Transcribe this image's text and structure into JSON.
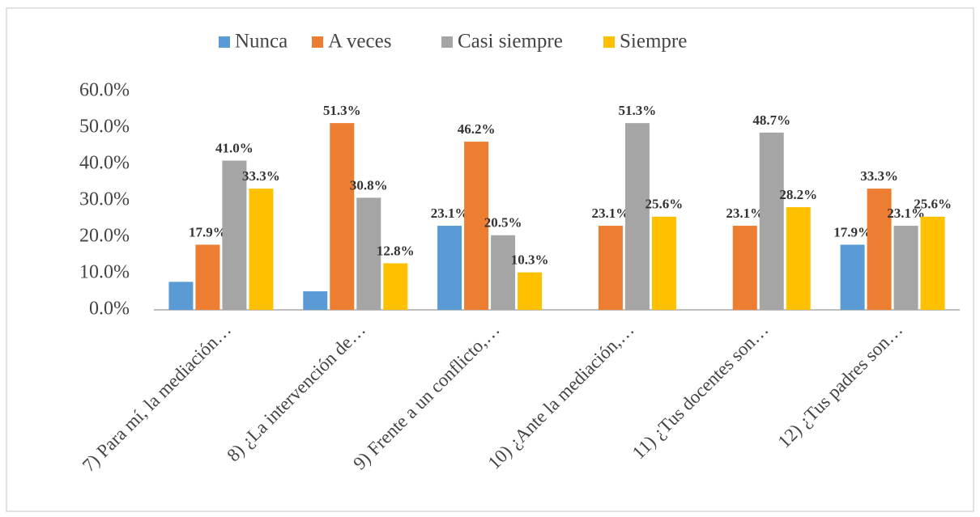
{
  "chart_data": {
    "type": "bar",
    "categories": [
      "7) Para mí, la mediación…",
      "8) ¿La intervención de…",
      "9) Frente a un conflicto,…",
      "10) ¿Ante la mediación,…",
      "11) ¿Tus docentes son…",
      "12) ¿Tus padres son…"
    ],
    "series": [
      {
        "name": "Nunca",
        "color": "#5b9bd5",
        "values": [
          7.7,
          5.1,
          23.1,
          0,
          0,
          17.9
        ],
        "value_labels": [
          null,
          null,
          "23.1%",
          null,
          null,
          "17.9%"
        ]
      },
      {
        "name": "A veces",
        "color": "#ed7d31",
        "values": [
          17.9,
          51.3,
          46.2,
          23.1,
          23.1,
          33.3
        ],
        "value_labels": [
          "17.9%",
          "51.3%",
          "46.2%",
          "23.1%",
          "23.1%",
          "33.3%"
        ]
      },
      {
        "name": "Casi siempre",
        "color": "#a5a5a5",
        "values": [
          41.0,
          30.8,
          20.5,
          51.3,
          48.7,
          23.1
        ],
        "value_labels": [
          "41.0%",
          "30.8%",
          "20.5%",
          "51.3%",
          "48.7%",
          "23.1%"
        ]
      },
      {
        "name": "Siempre",
        "color": "#ffc000",
        "values": [
          33.3,
          12.8,
          10.3,
          25.6,
          28.2,
          25.6
        ],
        "value_labels": [
          "33.3%",
          "12.8%",
          "10.3%",
          "25.6%",
          "28.2%",
          "25.6%"
        ]
      }
    ],
    "ylim": [
      0,
      60
    ],
    "yticks": [
      {
        "value": 0,
        "label": "0.0%"
      },
      {
        "value": 10,
        "label": "10.0%"
      },
      {
        "value": 20,
        "label": "20.0%"
      },
      {
        "value": 30,
        "label": "30.0%"
      },
      {
        "value": 40,
        "label": "40.0%"
      },
      {
        "value": 50,
        "label": "50.0%"
      },
      {
        "value": 60,
        "label": "60.0%"
      }
    ],
    "grid": false,
    "legend": "top"
  }
}
